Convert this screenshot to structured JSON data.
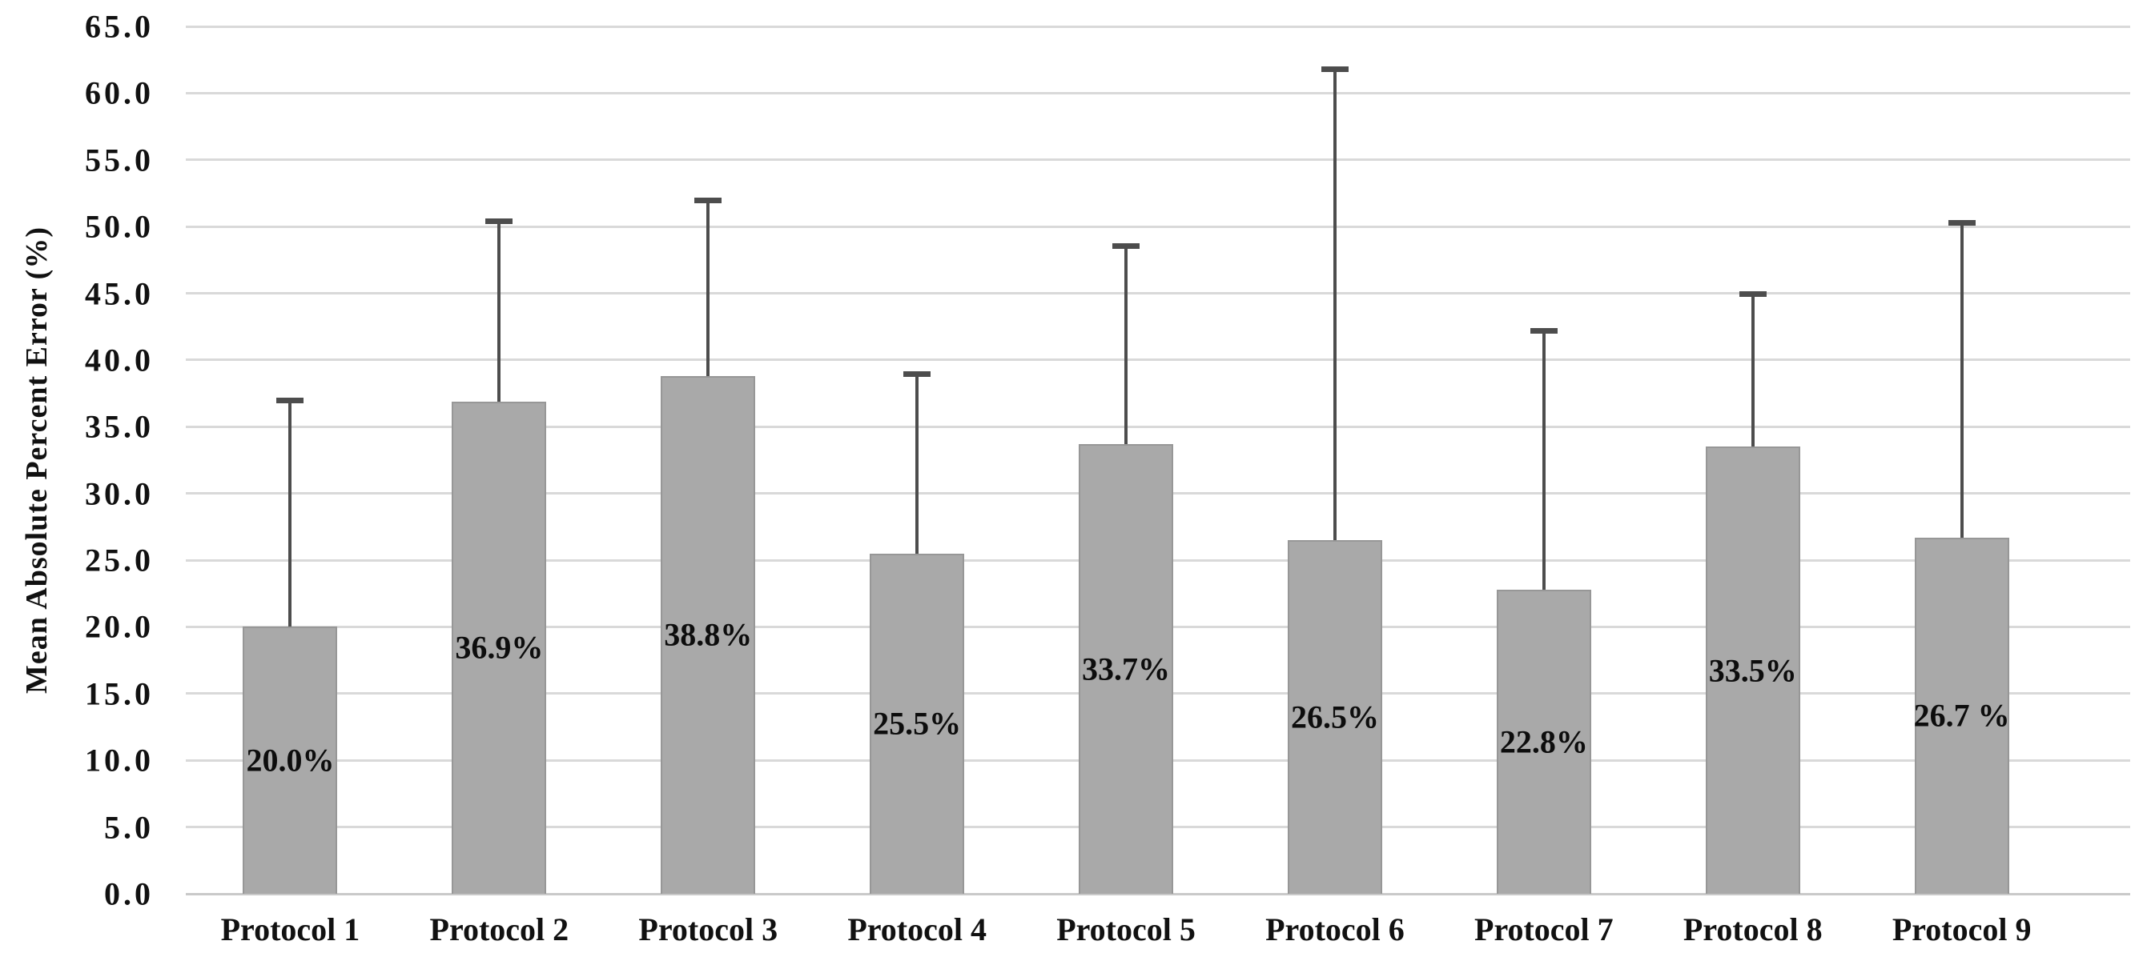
{
  "chart_data": {
    "type": "bar",
    "ylabel": "Mean Absolute Percent Error (%)",
    "xlabel": "",
    "categories": [
      "Protocol 1",
      "Protocol 2",
      "Protocol 3",
      "Protocol 4",
      "Protocol 5",
      "Protocol 6",
      "Protocol 7",
      "Protocol 8",
      "Protocol 9"
    ],
    "values": [
      20.0,
      36.9,
      38.8,
      25.5,
      33.7,
      26.5,
      22.8,
      33.5,
      26.7
    ],
    "bar_labels": [
      "20.0%",
      "36.9%",
      "38.8%",
      "25.5%",
      "33.7%",
      "26.5%",
      "22.8%",
      "33.5%",
      "26.7 %"
    ],
    "error_whisker_top": [
      37.0,
      50.4,
      52.0,
      39.0,
      48.6,
      61.8,
      42.2,
      45.0,
      50.3
    ],
    "ylim": [
      0,
      65
    ],
    "ytick_step": 5,
    "ytick_labels": [
      "0.0",
      "5.0",
      "10.0",
      "15.0",
      "20.0",
      "25.0",
      "30.0",
      "35.0",
      "40.0",
      "45.0",
      "50.0",
      "55.0",
      "60.0",
      "65.0"
    ],
    "grid": true,
    "legend": "none",
    "colors": {
      "bar": "#a9a9a9",
      "bar_border": "#979797",
      "error_bar": "#4d4d4d",
      "gridline": "#d9d9d9",
      "baseline": "#c9c9c9",
      "text": "#111111",
      "background": "#ffffff"
    }
  }
}
